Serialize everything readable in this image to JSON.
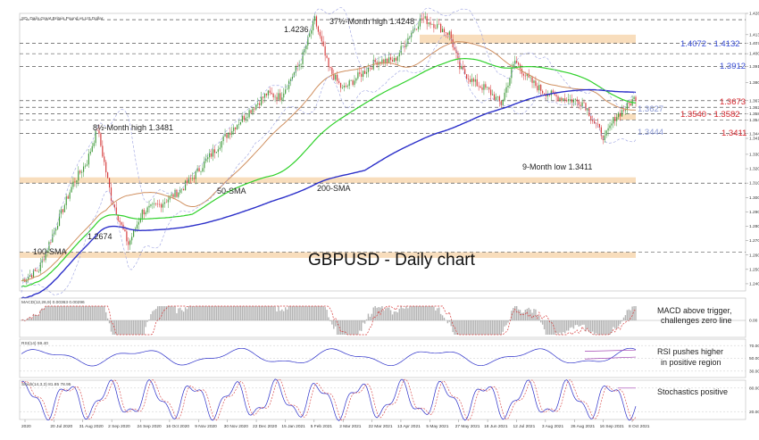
{
  "chart_data": {
    "type": "candlestick",
    "header": "SD, Daily  Great Britain Pound vs US Dollar",
    "title": "GBPUSD - Daily chart",
    "price_range": [
      1.235,
      1.428
    ],
    "x_ticks": [
      "2020",
      "20 Jul 2020",
      "31 Aug 2020",
      "2 Sep 2020",
      "24 Sep 2020",
      "16 Oct 2020",
      "9 Nov 2020",
      "30 Nov 2020",
      "22 Dec 2020",
      "15 Jan 2021",
      "5 Feb 2021",
      "2 Mar 2021",
      "22 Mar 2021",
      "13 Apr 2021",
      "5 May 2021",
      "27 May 2021",
      "18 Jun 2021",
      "12 Jul 2021",
      "3 Aug 2021",
      "26 Aug 2021",
      "16 Sep 2021",
      "8 Oct 2021"
    ],
    "y_ticks": [
      {
        "label": "1.4280",
        "value": 1.428
      },
      {
        "label": "1.4132",
        "value": 1.4132
      },
      {
        "label": "1.4072",
        "value": 1.4072
      },
      {
        "label": "1.4000",
        "value": 1.4
      },
      {
        "label": "1.3912",
        "value": 1.3912
      },
      {
        "label": "1.3800",
        "value": 1.38
      },
      {
        "label": "1.3673",
        "value": 1.3673
      },
      {
        "label": "1.3627",
        "value": 1.3627
      },
      {
        "label": "1.3582",
        "value": 1.3582
      },
      {
        "label": "1.3540",
        "value": 1.354
      },
      {
        "label": "1.3444",
        "value": 1.3444
      },
      {
        "label": "1.3411",
        "value": 1.3411
      },
      {
        "label": "1.3300",
        "value": 1.33
      },
      {
        "label": "1.3200",
        "value": 1.32
      },
      {
        "label": "1.3100",
        "value": 1.31
      },
      {
        "label": "1.3000",
        "value": 1.3
      },
      {
        "label": "1.2900",
        "value": 1.29
      },
      {
        "label": "1.2800",
        "value": 1.28
      },
      {
        "label": "1.2700",
        "value": 1.27
      },
      {
        "label": "1.2600",
        "value": 1.26
      },
      {
        "label": "1.2500",
        "value": 1.25
      },
      {
        "label": "1.2400",
        "value": 1.24
      }
    ],
    "level_labels": [
      {
        "text": "1.4072 - 1.4132",
        "value": 1.4102,
        "color": "#3a4fd8"
      },
      {
        "text": "1.3912",
        "value": 1.3912,
        "color": "#3a4fd8"
      },
      {
        "text": "1.3673",
        "value": 1.3673,
        "color": "#d7282f"
      },
      {
        "text": "1.3627",
        "value": 1.3627,
        "color": "#8c9ad6"
      },
      {
        "text": "1.3540 - 1.3582",
        "value": 1.3561,
        "color": "#d7282f"
      },
      {
        "text": "1.3444",
        "value": 1.3444,
        "color": "#8c9ad6"
      },
      {
        "text": "1.3411",
        "value": 1.3411,
        "color": "#d7282f"
      }
    ],
    "annotations": [
      {
        "text": "1.4236",
        "date": "Feb 2021",
        "value": 1.4236
      },
      {
        "text": "37½-Month high 1.4248",
        "date": "Apr 2021",
        "value": 1.4248
      },
      {
        "text": "8½-Month high 1.3481",
        "date": "Sep 2020",
        "value": 1.3481
      },
      {
        "text": "1.2674",
        "date": "Sep 2020",
        "value": 1.2674
      },
      {
        "text": "9-Month low 1.3411",
        "date": "Sep 2021",
        "value": 1.3411
      },
      {
        "text": "50-SMA",
        "date": "Oct 2020",
        "value": 1.3
      },
      {
        "text": "200-SMA",
        "date": "Dec 2020",
        "value": 1.299
      },
      {
        "text": "100-SMA",
        "date": "Aug 2020",
        "value": 1.238
      }
    ],
    "zones": [
      {
        "low": 1.4072,
        "high": 1.4132
      },
      {
        "low": 1.354,
        "high": 1.3582
      },
      {
        "low": 1.31,
        "high": 1.314
      },
      {
        "low": 1.258,
        "high": 1.262
      }
    ],
    "sma_colors": {
      "sma50": "#d09060",
      "sma100": "#2fd12a",
      "sma200": "#2b2fc9"
    },
    "candle_colors": {
      "up": "#3f9a3a",
      "down": "#d53a3a"
    },
    "indicators": [
      {
        "name": "MACD",
        "header": "MACD(12,26,9) 0.00363 0.00296",
        "note_line1": "MACD above trigger,",
        "note_line2": "challenges zero line",
        "ticks": [
          "0.00"
        ]
      },
      {
        "name": "RSI",
        "header": "RSI(14) 59.40",
        "note_line1": "RSI pushes higher",
        "note_line2": "in positive region",
        "ticks": [
          "70.00",
          "50.00",
          "30.00"
        ]
      },
      {
        "name": "Stochastics",
        "header": "Stoch(14,3,3) 81.85 78.95",
        "note_line1": "Stochastics positive",
        "note_line2": "",
        "ticks": [
          "80.00",
          "20.00"
        ]
      }
    ]
  }
}
